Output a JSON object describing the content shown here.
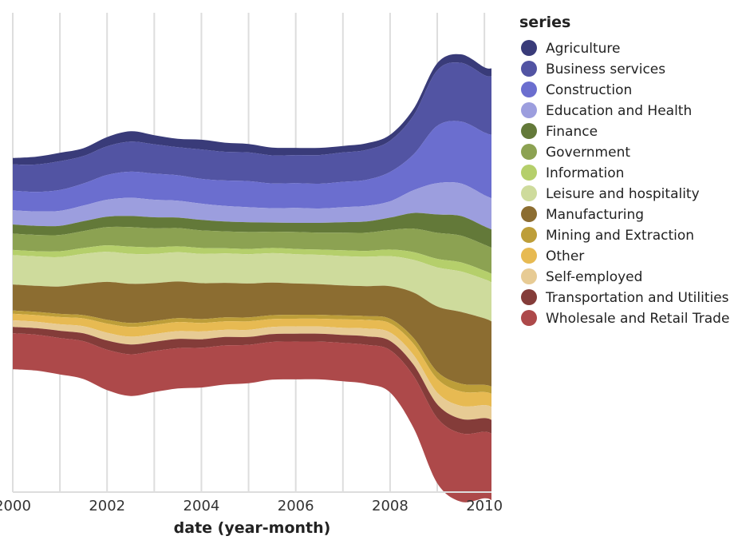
{
  "chart_data": {
    "type": "area",
    "subtype": "streamgraph (wiggle offset, stacked, symmetric)",
    "title": "",
    "xlabel": "date (year-month)",
    "ylabel": "",
    "x_range": [
      2000.0,
      2010.15
    ],
    "x_ticks": [
      "2000",
      "2002",
      "2004",
      "2006",
      "2008",
      "2010"
    ],
    "grid": "vertical lines at each year",
    "legend_title": "series",
    "legend_position": "right",
    "stack_order_top_to_bottom": [
      "Agriculture",
      "Business services",
      "Construction",
      "Education and Health",
      "Finance",
      "Government",
      "Information",
      "Leisure and hospitality",
      "Manufacturing",
      "Mining and Extraction",
      "Other",
      "Self-employed",
      "Transportation and Utilities",
      "Wholesale and Retail Trade"
    ],
    "x": [
      2000.0,
      2000.5,
      2001.0,
      2001.5,
      2002.0,
      2002.5,
      2003.0,
      2003.5,
      2004.0,
      2004.5,
      2005.0,
      2005.5,
      2006.0,
      2006.5,
      2007.0,
      2007.5,
      2008.0,
      2008.5,
      2009.0,
      2009.5,
      2010.0,
      2010.15
    ],
    "series": [
      {
        "name": "Agriculture",
        "color": "#393b79",
        "values": [
          10,
          12,
          13,
          12,
          14,
          16,
          14,
          13,
          15,
          14,
          13,
          12,
          11,
          11,
          10,
          10,
          9,
          10,
          11,
          13,
          12,
          12
        ]
      },
      {
        "name": "Business services",
        "color": "#5254a3",
        "values": [
          40,
          42,
          44,
          42,
          44,
          46,
          45,
          43,
          45,
          44,
          44,
          43,
          43,
          44,
          45,
          46,
          48,
          60,
          85,
          90,
          88,
          90
        ]
      },
      {
        "name": "Construction",
        "color": "#6b6ecf",
        "values": [
          30,
          30,
          32,
          34,
          38,
          40,
          40,
          39,
          38,
          39,
          40,
          38,
          38,
          38,
          39,
          40,
          45,
          55,
          88,
          95,
          96,
          97
        ]
      },
      {
        "name": "Education and Health",
        "color": "#9c9ede",
        "values": [
          22,
          22,
          23,
          24,
          26,
          28,
          27,
          26,
          25,
          24,
          23,
          22,
          23,
          22,
          23,
          24,
          25,
          35,
          48,
          50,
          48,
          48
        ]
      },
      {
        "name": "Finance",
        "color": "#637939",
        "values": [
          14,
          14,
          14,
          15,
          16,
          17,
          17,
          16,
          16,
          15,
          15,
          14,
          14,
          15,
          16,
          17,
          19,
          24,
          28,
          30,
          28,
          28
        ]
      },
      {
        "name": "Government",
        "color": "#8ca252",
        "values": [
          25,
          25,
          25,
          26,
          28,
          30,
          29,
          28,
          27,
          26,
          26,
          25,
          26,
          26,
          27,
          28,
          30,
          36,
          40,
          41,
          40,
          40
        ]
      },
      {
        "name": "Information",
        "color": "#b5cf6b",
        "values": [
          8,
          8,
          9,
          9,
          10,
          11,
          10,
          9,
          9,
          8,
          8,
          8,
          8,
          8,
          9,
          9,
          10,
          12,
          13,
          14,
          13,
          13
        ]
      },
      {
        "name": "Leisure and hospitality",
        "color": "#cedb9c",
        "values": [
          45,
          45,
          45,
          46,
          46,
          46,
          45,
          45,
          45,
          45,
          45,
          45,
          45,
          45,
          45,
          45,
          46,
          50,
          60,
          62,
          60,
          60
        ]
      },
      {
        "name": "Manufacturing",
        "color": "#8c6d31",
        "values": [
          40,
          40,
          42,
          48,
          58,
          60,
          58,
          56,
          55,
          53,
          52,
          50,
          48,
          47,
          46,
          46,
          50,
          70,
          100,
          110,
          102,
          100
        ]
      },
      {
        "name": "Mining and Extraction",
        "color": "#bd9e39",
        "values": [
          5,
          5,
          5,
          5,
          6,
          6,
          6,
          6,
          6,
          6,
          6,
          6,
          6,
          6,
          6,
          6,
          7,
          9,
          11,
          12,
          11,
          11
        ]
      },
      {
        "name": "Other",
        "color": "#e7ba52",
        "values": [
          10,
          10,
          11,
          12,
          14,
          15,
          14,
          14,
          13,
          13,
          13,
          12,
          12,
          12,
          13,
          13,
          14,
          17,
          21,
          22,
          20,
          20
        ]
      },
      {
        "name": "Self-employed",
        "color": "#e7cb94",
        "values": [
          10,
          10,
          10,
          11,
          12,
          12,
          12,
          12,
          12,
          11,
          11,
          11,
          11,
          11,
          11,
          12,
          13,
          15,
          18,
          20,
          20,
          20
        ]
      },
      {
        "name": "Transportation and Utilities",
        "color": "#843c39",
        "values": [
          10,
          10,
          11,
          12,
          14,
          15,
          14,
          14,
          13,
          13,
          12,
          12,
          12,
          12,
          12,
          13,
          14,
          17,
          21,
          22,
          21,
          21
        ]
      },
      {
        "name": "Wholesale and Retail Trade",
        "color": "#ad494a",
        "values": [
          55,
          55,
          56,
          58,
          62,
          64,
          63,
          62,
          61,
          60,
          59,
          58,
          58,
          58,
          59,
          60,
          65,
          80,
          100,
          105,
          102,
          102
        ]
      }
    ]
  }
}
